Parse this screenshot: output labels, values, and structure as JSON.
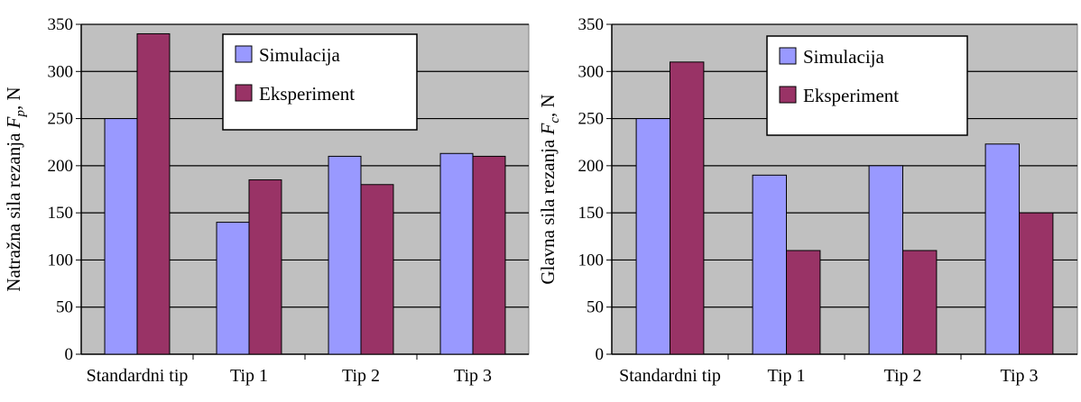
{
  "colors": {
    "plot_bg": "#c0c0c0",
    "simulation": "#9999ff",
    "experiment": "#993366",
    "gridline": "#000000"
  },
  "chart_data": [
    {
      "type": "bar",
      "title": "",
      "ylabel_text": "Natražna sila rezanja ",
      "ylabel_sym": "F",
      "ylabel_sub": "p",
      "ylabel_unit": ", N",
      "categories": [
        "Standardni tip",
        "Tip 1",
        "Tip 2",
        "Tip 3"
      ],
      "series": [
        {
          "name": "Simulacija",
          "values": [
            250,
            140,
            210,
            213
          ]
        },
        {
          "name": "Eksperiment",
          "values": [
            340,
            185,
            180,
            210
          ]
        }
      ],
      "ylim": [
        0,
        350
      ],
      "yticks": [
        "0",
        "50",
        "100",
        "150",
        "200",
        "250",
        "300",
        "350"
      ],
      "grid": true,
      "legend_position": "top-center"
    },
    {
      "type": "bar",
      "title": "",
      "ylabel_text": "Glavna sila rezanja ",
      "ylabel_sym": "F",
      "ylabel_sub": "c",
      "ylabel_unit": ", N",
      "categories": [
        "Standardni tip",
        "Tip 1",
        "Tip 2",
        "Tip 3"
      ],
      "series": [
        {
          "name": "Simulacija",
          "values": [
            250,
            190,
            200,
            223
          ]
        },
        {
          "name": "Eksperiment",
          "values": [
            310,
            110,
            110,
            150
          ]
        }
      ],
      "ylim": [
        0,
        350
      ],
      "yticks": [
        "0",
        "50",
        "100",
        "150",
        "200",
        "250",
        "300",
        "350"
      ],
      "grid": true,
      "legend_position": "top-center"
    }
  ]
}
